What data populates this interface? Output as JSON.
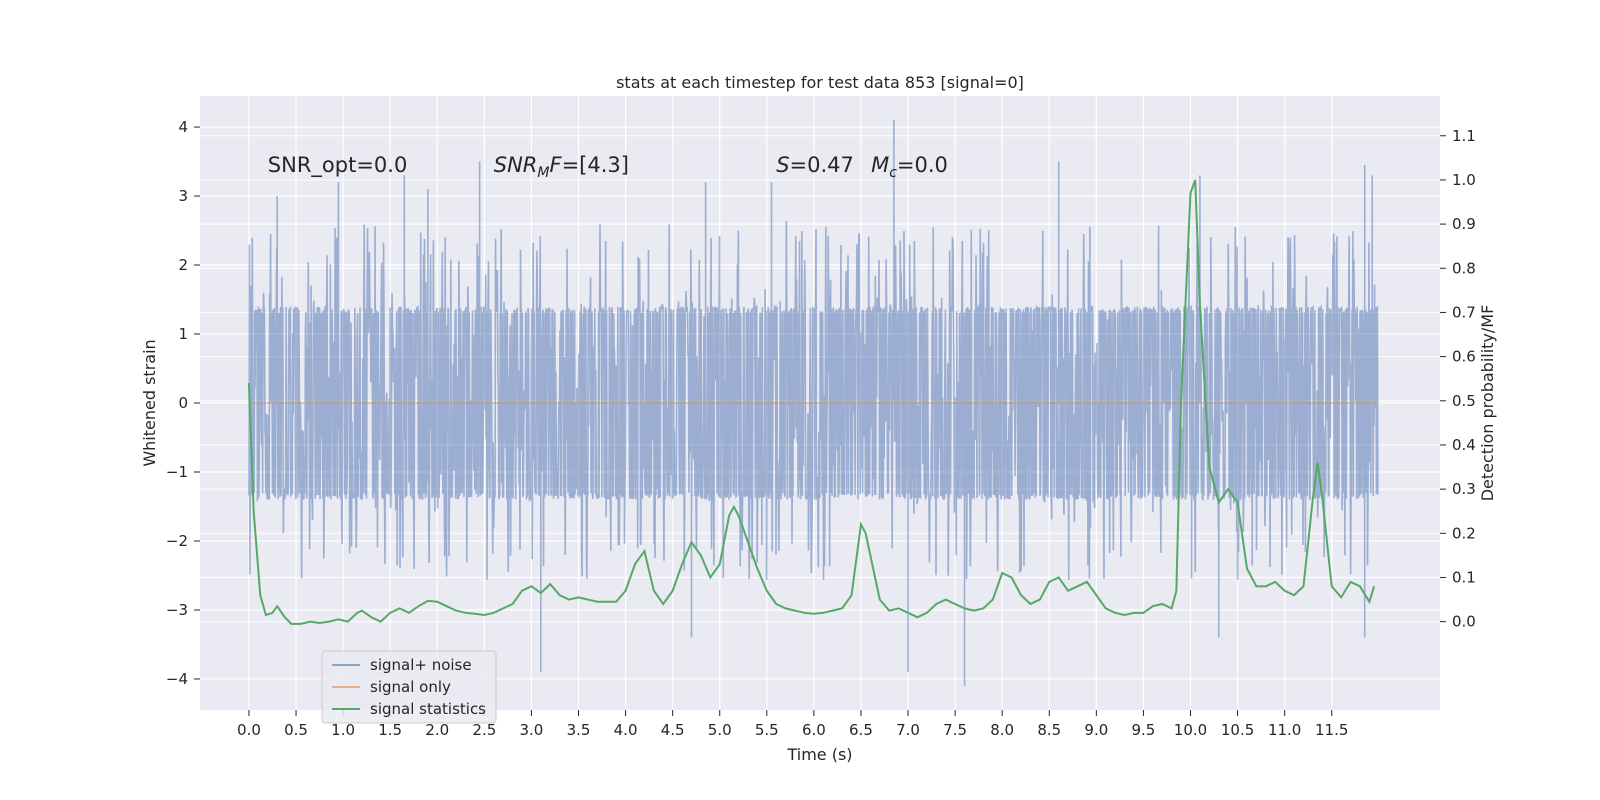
{
  "chart_data": {
    "type": "line",
    "title": "stats at each timestep for test data 853 [signal=0]",
    "xlabel": "Time (s)",
    "ylabel": "Whitened strain",
    "y2label": "Detection probability/MF",
    "xlim": [
      -0.52,
      12.65
    ],
    "ylim": [
      -4.45,
      4.45
    ],
    "y2lim": [
      -0.2,
      1.19
    ],
    "xticks": [
      0.0,
      0.5,
      1.0,
      1.5,
      2.0,
      2.5,
      3.0,
      3.5,
      4.0,
      4.5,
      5.0,
      5.5,
      6.0,
      6.5,
      7.0,
      7.5,
      8.0,
      8.5,
      9.0,
      9.5,
      10.0,
      10.5,
      11.0,
      11.5
    ],
    "xtick_labels": [
      "0.0",
      "0.5",
      "1.0",
      "1.5",
      "2.0",
      "2.5",
      "3.0",
      "3.5",
      "4.0",
      "4.5",
      "5.0",
      "5.5",
      "6.0",
      "6.5",
      "7.0",
      "7.5",
      "8.0",
      "8.5",
      "9.0",
      "9.5",
      "10.0",
      "10.5",
      "11.0",
      "11.5"
    ],
    "yticks": [
      -4,
      -3,
      -2,
      -1,
      0,
      1,
      2,
      3,
      4
    ],
    "ytick_labels": [
      "−4",
      "−3",
      "−2",
      "−1",
      "0",
      "1",
      "2",
      "3",
      "4"
    ],
    "y2ticks": [
      0.0,
      0.1,
      0.2,
      0.3,
      0.4,
      0.5,
      0.6,
      0.7,
      0.8,
      0.9,
      1.0,
      1.1
    ],
    "y2tick_labels": [
      "0.0",
      "0.1",
      "0.2",
      "0.3",
      "0.4",
      "0.5",
      "0.6",
      "0.7",
      "0.8",
      "0.9",
      "1.0",
      "1.1"
    ],
    "annotations": [
      {
        "text": "SNR_opt=0.0",
        "x": 0.2,
        "y": 3.35
      },
      {
        "text": "SNR_MF=[4.3]",
        "x": 2.6,
        "y": 3.35
      },
      {
        "text": "S=0.47  M_c=0.0",
        "x": 5.6,
        "y": 3.35
      }
    ],
    "noise_series": {
      "name": "signal+ noise",
      "color": "#4c72b0",
      "alpha": 0.5,
      "t_start": 0.0,
      "t_end": 11.99,
      "bulk_abs": 1.3,
      "typical_peak_abs": 2.0,
      "max": 4.1,
      "min": -4.1,
      "prominent_peaks": [
        {
          "t": 0.02,
          "v": 1.7
        },
        {
          "t": 0.3,
          "v": 3.0
        },
        {
          "t": 0.95,
          "v": 3.2
        },
        {
          "t": 1.65,
          "v": 3.3
        },
        {
          "t": 1.9,
          "v": 3.1
        },
        {
          "t": 2.45,
          "v": 3.5
        },
        {
          "t": 4.85,
          "v": 3.2
        },
        {
          "t": 5.55,
          "v": 3.2
        },
        {
          "t": 6.85,
          "v": 4.1
        },
        {
          "t": 8.6,
          "v": 3.5
        },
        {
          "t": 10.1,
          "v": 3.3
        },
        {
          "t": 11.85,
          "v": 3.45
        },
        {
          "t": 11.93,
          "v": 3.3
        },
        {
          "t": 3.1,
          "v": -3.9
        },
        {
          "t": 7.0,
          "v": -3.9
        },
        {
          "t": 7.6,
          "v": -4.1
        },
        {
          "t": 10.3,
          "v": -3.4
        },
        {
          "t": 4.7,
          "v": -3.4
        },
        {
          "t": 11.85,
          "v": -3.4
        }
      ]
    },
    "signal_series": {
      "name": "signal only",
      "color": "#dd8452",
      "x": [
        0.0,
        11.99
      ],
      "y": [
        0.0,
        0.0
      ]
    },
    "stat_series": {
      "name": "signal statistics",
      "color": "#55a868",
      "axis": "right",
      "x": [
        0.0,
        0.05,
        0.12,
        0.18,
        0.25,
        0.3,
        0.38,
        0.45,
        0.55,
        0.65,
        0.75,
        0.85,
        0.95,
        1.05,
        1.15,
        1.2,
        1.3,
        1.4,
        1.5,
        1.6,
        1.7,
        1.8,
        1.9,
        2.0,
        2.1,
        2.2,
        2.3,
        2.4,
        2.5,
        2.6,
        2.7,
        2.8,
        2.9,
        3.0,
        3.1,
        3.2,
        3.3,
        3.4,
        3.5,
        3.6,
        3.7,
        3.8,
        3.9,
        4.0,
        4.1,
        4.2,
        4.3,
        4.4,
        4.5,
        4.6,
        4.7,
        4.8,
        4.9,
        5.0,
        5.1,
        5.15,
        5.2,
        5.3,
        5.4,
        5.5,
        5.6,
        5.7,
        5.8,
        5.9,
        6.0,
        6.1,
        6.2,
        6.3,
        6.4,
        6.5,
        6.55,
        6.6,
        6.7,
        6.8,
        6.9,
        7.0,
        7.1,
        7.2,
        7.3,
        7.4,
        7.5,
        7.6,
        7.7,
        7.8,
        7.9,
        8.0,
        8.1,
        8.2,
        8.3,
        8.4,
        8.5,
        8.6,
        8.7,
        8.8,
        8.9,
        9.0,
        9.1,
        9.2,
        9.3,
        9.4,
        9.5,
        9.6,
        9.7,
        9.8,
        9.85,
        9.9,
        10.0,
        10.05,
        10.1,
        10.2,
        10.3,
        10.4,
        10.5,
        10.6,
        10.7,
        10.8,
        10.9,
        11.0,
        11.1,
        11.2,
        11.3,
        11.35,
        11.4,
        11.5,
        11.6,
        11.7,
        11.8,
        11.9,
        11.95
      ],
      "y": [
        0.54,
        0.25,
        0.06,
        0.015,
        0.02,
        0.035,
        0.01,
        -0.005,
        -0.005,
        0.0,
        -0.003,
        0.0,
        0.005,
        0.0,
        0.02,
        0.025,
        0.01,
        0.0,
        0.02,
        0.03,
        0.02,
        0.035,
        0.047,
        0.045,
        0.035,
        0.025,
        0.02,
        0.018,
        0.015,
        0.02,
        0.03,
        0.04,
        0.07,
        0.08,
        0.065,
        0.085,
        0.06,
        0.05,
        0.055,
        0.05,
        0.045,
        0.045,
        0.045,
        0.07,
        0.13,
        0.16,
        0.07,
        0.04,
        0.07,
        0.13,
        0.18,
        0.15,
        0.1,
        0.13,
        0.24,
        0.26,
        0.24,
        0.18,
        0.12,
        0.07,
        0.04,
        0.03,
        0.025,
        0.02,
        0.018,
        0.02,
        0.025,
        0.03,
        0.06,
        0.22,
        0.2,
        0.15,
        0.05,
        0.025,
        0.03,
        0.02,
        0.01,
        0.02,
        0.04,
        0.05,
        0.04,
        0.03,
        0.025,
        0.03,
        0.05,
        0.11,
        0.1,
        0.06,
        0.04,
        0.05,
        0.09,
        0.1,
        0.07,
        0.08,
        0.09,
        0.06,
        0.03,
        0.02,
        0.015,
        0.02,
        0.02,
        0.035,
        0.04,
        0.03,
        0.07,
        0.5,
        0.97,
        1.0,
        0.72,
        0.35,
        0.27,
        0.3,
        0.27,
        0.12,
        0.08,
        0.08,
        0.09,
        0.07,
        0.06,
        0.08,
        0.28,
        0.36,
        0.28,
        0.08,
        0.055,
        0.09,
        0.08,
        0.045,
        0.08
      ]
    },
    "legend": {
      "location": "lower-left",
      "entries": [
        {
          "label": "signal+ noise",
          "color": "#4c72b0"
        },
        {
          "label": "signal only",
          "color": "#dd8452"
        },
        {
          "label": "signal statistics",
          "color": "#55a868"
        }
      ]
    },
    "style": {
      "plot_background": "#eaeaf2",
      "grid": true,
      "grid_color": "#ffffff"
    }
  }
}
